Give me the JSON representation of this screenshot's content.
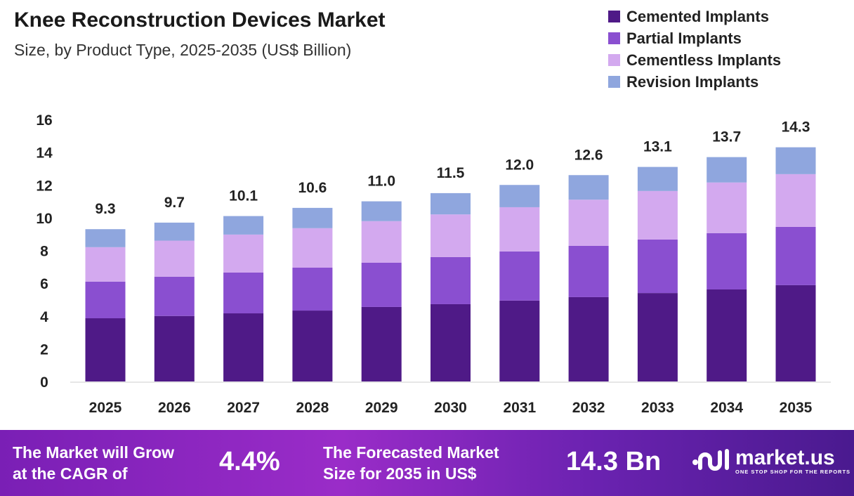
{
  "chart_data": {
    "type": "bar",
    "stacked": true,
    "title": "Knee Reconstruction Devices Market",
    "subtitle": "Size, by Product Type, 2025-2035 (US$ Billion)",
    "categories": [
      "2025",
      "2026",
      "2027",
      "2028",
      "2029",
      "2030",
      "2031",
      "2032",
      "2033",
      "2034",
      "2035"
    ],
    "series": [
      {
        "name": "Cemented Implants",
        "color": "#4f1a87",
        "values": [
          3.86,
          4.0,
          4.16,
          4.33,
          4.55,
          4.72,
          4.94,
          5.15,
          5.4,
          5.62,
          5.88
        ]
      },
      {
        "name": "Partial Implants",
        "color": "#8a4fd0",
        "values": [
          2.24,
          2.4,
          2.49,
          2.62,
          2.7,
          2.88,
          3.0,
          3.13,
          3.27,
          3.44,
          3.56
        ]
      },
      {
        "name": "Cementless Implants",
        "color": "#d3a9ef",
        "values": [
          2.1,
          2.2,
          2.32,
          2.41,
          2.54,
          2.6,
          2.7,
          2.82,
          2.96,
          3.09,
          3.22
        ]
      },
      {
        "name": "Revision Implants",
        "color": "#8fa6de",
        "values": [
          1.1,
          1.1,
          1.13,
          1.24,
          1.21,
          1.3,
          1.36,
          1.5,
          1.47,
          1.55,
          1.64
        ]
      }
    ],
    "totals": [
      "9.3",
      "9.7",
      "10.1",
      "10.6",
      "11.0",
      "11.5",
      "12.0",
      "12.6",
      "13.1",
      "13.7",
      "14.3"
    ],
    "yticks": [
      "0",
      "2",
      "4",
      "6",
      "8",
      "10",
      "12",
      "14",
      "16"
    ],
    "ylim": [
      0,
      16
    ],
    "grid": false,
    "legend_position": "top-right"
  },
  "banner": {
    "cagr_text_1": "The Market will Grow",
    "cagr_text_2": "at the CAGR of",
    "cagr_value": "4.4%",
    "forecast_text_1": "The Forecasted Market",
    "forecast_text_2": "Size for 2035 in US$",
    "forecast_value": "14.3 Bn",
    "logo_name": "market.us",
    "logo_tagline": "ONE STOP SHOP FOR THE REPORTS"
  }
}
